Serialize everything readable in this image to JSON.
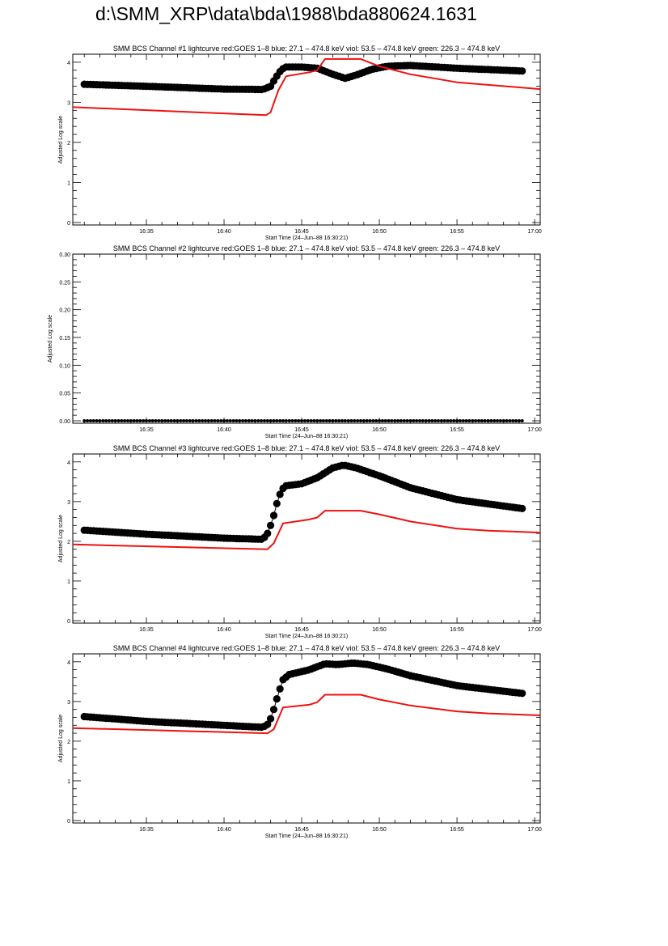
{
  "page_title": "d:\\SMM_XRP\\data\\bda\\1988\\bda880624.1631",
  "colors": {
    "goes": "#ee1111",
    "bcs": "#000000"
  },
  "chart_data": [
    {
      "type": "scatter",
      "title": "SMM BCS Channel #1 lightcurve  red:GOES 1–8  blue: 27.1 – 474.8 keV  viol: 53.5 – 474.8 keV  green: 226.3 – 474.8 keV",
      "xlabel": "Start Time (24–Jun–88 16:30:21)",
      "ylabel": "Adjusted Log scale",
      "x_units": "minutes after 16:30",
      "xlim": [
        0.26,
        30.36
      ],
      "x_ticks": [
        5,
        10,
        15,
        20,
        25,
        30
      ],
      "x_tick_labels": [
        "16:35",
        "16:40",
        "16:45",
        "16:50",
        "16:55",
        "17:00"
      ],
      "ylim": [
        0,
        4.2
      ],
      "y_ticks": [
        0,
        1,
        2,
        3,
        4
      ],
      "y_tick_labels": [
        "0",
        "1",
        "2",
        "3",
        "4"
      ],
      "y_minor": 0.2,
      "series": [
        {
          "name": "BCS channel #1",
          "style": "dots",
          "x": [
            1,
            5,
            10,
            12.5,
            13,
            13.3,
            13.7,
            14,
            15,
            16,
            17,
            17.8,
            18.5,
            19.5,
            20.5,
            22,
            25,
            29.3
          ],
          "y": [
            3.45,
            3.4,
            3.33,
            3.32,
            3.4,
            3.6,
            3.82,
            3.88,
            3.88,
            3.85,
            3.7,
            3.6,
            3.68,
            3.82,
            3.9,
            3.92,
            3.85,
            3.78
          ]
        },
        {
          "name": "GOES 1-8",
          "style": "line",
          "x": [
            0.26,
            12.7,
            13,
            13.5,
            14,
            15.5,
            16,
            16.5,
            18.8,
            20,
            22,
            25,
            30.36
          ],
          "y": [
            2.88,
            2.68,
            2.75,
            3.3,
            3.65,
            3.75,
            3.8,
            4.08,
            4.08,
            3.9,
            3.7,
            3.5,
            3.33
          ]
        }
      ]
    },
    {
      "type": "scatter",
      "title": "SMM BCS Channel #2 lightcurve  red:GOES 1–8  blue: 27.1 – 474.8 keV  viol: 53.5 – 474.8 keV  green: 226.3 – 474.8 keV",
      "xlabel": "Start Time (24–Jun–88 16:30:21)",
      "ylabel": "Adjusted Log scale",
      "x_units": "minutes after 16:30",
      "xlim": [
        0.26,
        30.36
      ],
      "x_ticks": [
        5,
        10,
        15,
        20,
        25,
        30
      ],
      "x_tick_labels": [
        "16:35",
        "16:40",
        "16:45",
        "16:50",
        "16:55",
        "17:00"
      ],
      "ylim": [
        0,
        0.3
      ],
      "y_ticks": [
        0,
        0.05,
        0.1,
        0.15,
        0.2,
        0.25,
        0.3
      ],
      "y_tick_labels": [
        "0.00",
        "0.05",
        "0.10",
        "0.15",
        "0.20",
        "0.25",
        "0.30"
      ],
      "y_minor": 0.01,
      "series": [
        {
          "name": "BCS channel #2",
          "style": "flatdots",
          "x": [
            1,
            29.3
          ],
          "y": [
            0,
            0
          ]
        }
      ]
    },
    {
      "type": "scatter",
      "title": "SMM BCS Channel #3 lightcurve  red:GOES 1–8  blue: 27.1 – 474.8 keV  viol: 53.5 – 474.8 keV  green: 226.3 – 474.8 keV",
      "xlabel": "Start Time (24–Jun–88 16:30:21)",
      "ylabel": "Adjusted Log scale",
      "x_units": "minutes after 16:30",
      "xlim": [
        0.26,
        30.36
      ],
      "x_ticks": [
        5,
        10,
        15,
        20,
        25,
        30
      ],
      "x_tick_labels": [
        "16:35",
        "16:40",
        "16:45",
        "16:50",
        "16:55",
        "17:00"
      ],
      "ylim": [
        0,
        4.2
      ],
      "y_ticks": [
        0,
        1,
        2,
        3,
        4
      ],
      "y_tick_labels": [
        "0",
        "1",
        "2",
        "3",
        "4"
      ],
      "y_minor": 0.2,
      "series": [
        {
          "name": "BCS channel #3",
          "style": "dots",
          "x": [
            1,
            5,
            10,
            12.5,
            12.8,
            13.1,
            13.4,
            13.7,
            14,
            15,
            16,
            17,
            17.7,
            18.5,
            20,
            22,
            25,
            29.3
          ],
          "y": [
            2.28,
            2.18,
            2.08,
            2.05,
            2.2,
            2.5,
            2.95,
            3.3,
            3.4,
            3.45,
            3.6,
            3.85,
            3.92,
            3.85,
            3.65,
            3.35,
            3.05,
            2.82
          ]
        },
        {
          "name": "GOES 1-8",
          "style": "line",
          "x": [
            0.26,
            12.8,
            13.2,
            13.8,
            15.5,
            16,
            16.5,
            18.8,
            20,
            22,
            25,
            27,
            30.36
          ],
          "y": [
            1.92,
            1.8,
            1.95,
            2.45,
            2.55,
            2.6,
            2.77,
            2.77,
            2.68,
            2.5,
            2.32,
            2.27,
            2.22
          ]
        }
      ]
    },
    {
      "type": "scatter",
      "title": "SMM BCS Channel #4 lightcurve  red:GOES 1–8  blue: 27.1 – 474.8 keV  viol: 53.5 – 474.8 keV  green: 226.3 – 474.8 keV",
      "xlabel": "Start Time (24–Jun–88 16:30:21)",
      "ylabel": "Adjusted Log scale",
      "x_units": "minutes after 16:30",
      "xlim": [
        0.26,
        30.36
      ],
      "x_ticks": [
        5,
        10,
        15,
        20,
        25,
        30
      ],
      "x_tick_labels": [
        "16:35",
        "16:40",
        "16:45",
        "16:50",
        "16:55",
        "17:00"
      ],
      "ylim": [
        0,
        4.2
      ],
      "y_ticks": [
        0,
        1,
        2,
        3,
        4
      ],
      "y_tick_labels": [
        "0",
        "1",
        "2",
        "3",
        "4"
      ],
      "y_minor": 0.2,
      "series": [
        {
          "name": "BCS channel #4",
          "style": "dots",
          "x": [
            1,
            5,
            10,
            12.5,
            12.9,
            13.2,
            13.5,
            13.8,
            14.2,
            15.5,
            16.5,
            17.3,
            18.3,
            19.3,
            20.5,
            22,
            25,
            29.3
          ],
          "y": [
            2.62,
            2.5,
            2.4,
            2.35,
            2.45,
            2.8,
            3.2,
            3.55,
            3.68,
            3.8,
            3.95,
            3.93,
            3.97,
            3.93,
            3.82,
            3.65,
            3.4,
            3.2
          ]
        },
        {
          "name": "GOES 1-8",
          "style": "line",
          "x": [
            0.26,
            12.8,
            13.2,
            13.8,
            15.5,
            16,
            16.5,
            18.8,
            20,
            22,
            25,
            27,
            30.36
          ],
          "y": [
            2.33,
            2.2,
            2.3,
            2.85,
            2.92,
            2.98,
            3.17,
            3.17,
            3.05,
            2.9,
            2.75,
            2.7,
            2.65
          ]
        }
      ]
    }
  ]
}
